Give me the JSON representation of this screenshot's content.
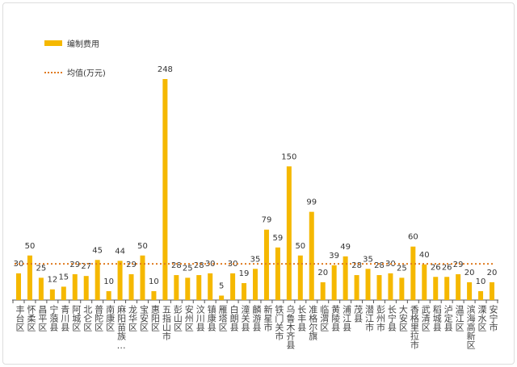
{
  "chart_data": {
    "type": "bar",
    "legend": [
      {
        "label": "编制费用",
        "kind": "bar",
        "color": "#f5b800"
      },
      {
        "label": "均值(万元)",
        "kind": "dotted-line",
        "color": "#e07b20"
      }
    ],
    "legend_placement": "top-left",
    "grid": false,
    "ylim": [
      0,
      260
    ],
    "average": 40.6,
    "categories": [
      "丰台区",
      "怀柔区",
      "昌平区",
      "宁蒗县",
      "青川县",
      "阿城区",
      "北仑区",
      "普陀区",
      "南康区",
      "麻阳苗族…",
      "龙华区",
      "宝安区",
      "惠阳区",
      "五指山市",
      "彭山区",
      "安州区",
      "汶川县",
      "镇康县",
      "雁塔区",
      "白朗县",
      "潼关县",
      "麟游县",
      "新星市",
      "铁门关市",
      "乌鲁木齐县",
      "长丰县",
      "准格尔旗",
      "临渭区",
      "黄陵县",
      "浦江县",
      "茂县",
      "潜江市",
      "彭州市",
      "长宁县",
      "大安区",
      "香格里拉市",
      "武清区",
      "稻城县",
      "泸定县",
      "温江区",
      "滨海高新区",
      "溧水区",
      "安宁市"
    ],
    "values": [
      30,
      50,
      25,
      12,
      15,
      29,
      27,
      45,
      10,
      44,
      29,
      50,
      10,
      248,
      28,
      25,
      28,
      30,
      5,
      30,
      19,
      35,
      79,
      59,
      150,
      50,
      99,
      20,
      39,
      49,
      28,
      35,
      28,
      30,
      25,
      60,
      40,
      26,
      26,
      29,
      20,
      10,
      20
    ]
  }
}
